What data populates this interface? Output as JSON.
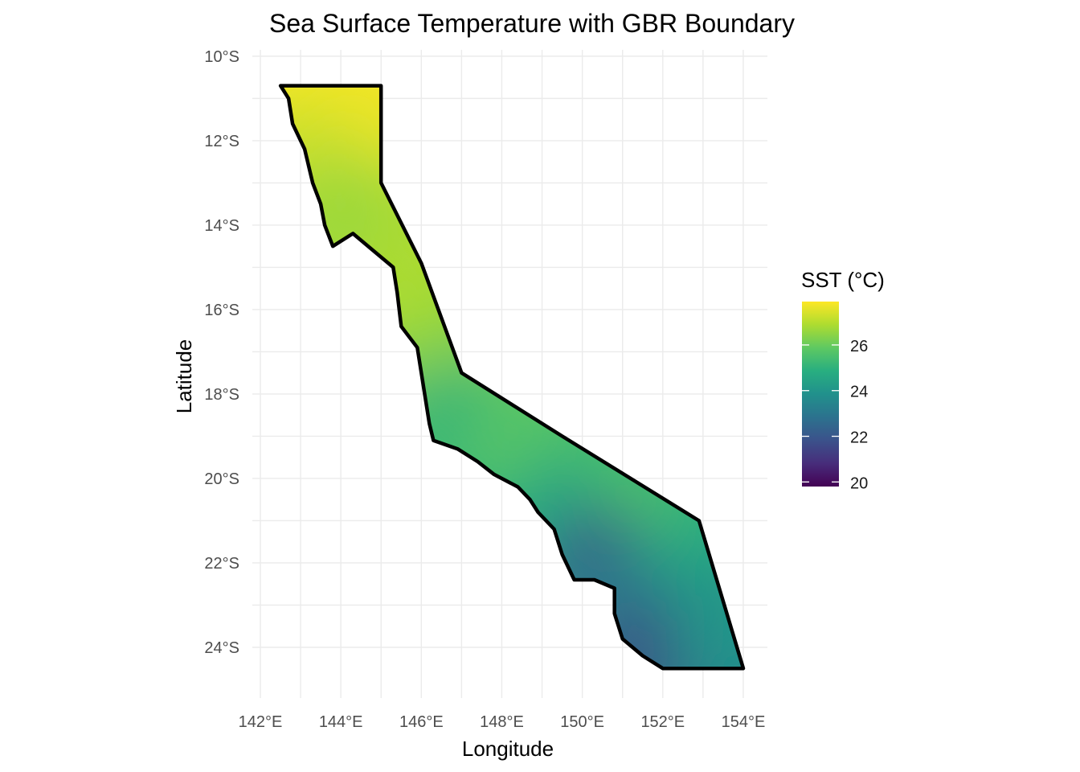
{
  "chart_data": {
    "type": "heatmap",
    "title": "Sea Surface Temperature with GBR Boundary",
    "xlabel": "Longitude",
    "ylabel": "Latitude",
    "xlim": [
      141.8,
      154.6
    ],
    "ylim": [
      -25.2,
      -9.85
    ],
    "x_ticks": [
      {
        "value": 142,
        "label": "142°E"
      },
      {
        "value": 144,
        "label": "144°E"
      },
      {
        "value": 146,
        "label": "146°E"
      },
      {
        "value": 148,
        "label": "148°E"
      },
      {
        "value": 150,
        "label": "150°E"
      },
      {
        "value": 152,
        "label": "152°E"
      },
      {
        "value": 154,
        "label": "154°E"
      }
    ],
    "y_ticks": [
      {
        "value": -10,
        "label": "10°S"
      },
      {
        "value": -12,
        "label": "12°S"
      },
      {
        "value": -14,
        "label": "14°S"
      },
      {
        "value": -16,
        "label": "16°S"
      },
      {
        "value": -18,
        "label": "18°S"
      },
      {
        "value": -20,
        "label": "20°S"
      },
      {
        "value": -22,
        "label": "22°S"
      },
      {
        "value": -24,
        "label": "24°S"
      }
    ],
    "grid": true,
    "legend": {
      "title": "SST (°C)",
      "position": "right",
      "colormap": "viridis",
      "range": [
        19.8,
        27.9
      ],
      "ticks": [
        26,
        24,
        22,
        20
      ],
      "colors": [
        "#440154",
        "#472d7b",
        "#3b528b",
        "#2c728e",
        "#21918c",
        "#28ae80",
        "#5ec962",
        "#addc30",
        "#fde725"
      ]
    },
    "boundary": {
      "name": "GBR Boundary",
      "color": "#000000",
      "outer": [
        [
          142.5,
          -10.7
        ],
        [
          145.0,
          -10.7
        ],
        [
          145.0,
          -13.0
        ],
        [
          146.0,
          -14.9
        ],
        [
          147.0,
          -17.5
        ],
        [
          149.5,
          -19.0
        ],
        [
          152.9,
          -21.0
        ],
        [
          154.0,
          -24.5
        ],
        [
          152.0,
          -24.5
        ]
      ],
      "coast": [
        [
          152.0,
          -24.5
        ],
        [
          151.5,
          -24.2
        ],
        [
          151.0,
          -23.8
        ],
        [
          150.8,
          -23.2
        ],
        [
          150.8,
          -22.6
        ],
        [
          150.3,
          -22.4
        ],
        [
          149.8,
          -22.4
        ],
        [
          149.5,
          -21.8
        ],
        [
          149.3,
          -21.2
        ],
        [
          148.9,
          -20.8
        ],
        [
          148.7,
          -20.5
        ],
        [
          148.4,
          -20.2
        ],
        [
          147.8,
          -19.9
        ],
        [
          147.4,
          -19.6
        ],
        [
          146.9,
          -19.3
        ],
        [
          146.3,
          -19.1
        ],
        [
          146.2,
          -18.7
        ],
        [
          146.1,
          -18.1
        ],
        [
          146.0,
          -17.5
        ],
        [
          145.9,
          -16.9
        ],
        [
          145.5,
          -16.4
        ],
        [
          145.4,
          -15.6
        ],
        [
          145.3,
          -15.0
        ],
        [
          144.8,
          -14.6
        ],
        [
          144.3,
          -14.2
        ],
        [
          143.8,
          -14.5
        ],
        [
          143.6,
          -14.0
        ],
        [
          143.5,
          -13.5
        ],
        [
          143.3,
          -13.0
        ],
        [
          143.1,
          -12.2
        ],
        [
          142.8,
          -11.6
        ],
        [
          142.7,
          -11.0
        ],
        [
          142.5,
          -10.7
        ]
      ]
    },
    "sst_field": {
      "units": "°C",
      "samples": [
        {
          "lon": 144.4,
          "lat": -11.5,
          "value": 27.8
        },
        {
          "lon": 143.5,
          "lat": -12.5,
          "value": 27.3
        },
        {
          "lon": 144.0,
          "lat": -13.6,
          "value": 26.6
        },
        {
          "lon": 145.5,
          "lat": -15.5,
          "value": 26.9
        },
        {
          "lon": 146.5,
          "lat": -17.2,
          "value": 26.5
        },
        {
          "lon": 146.8,
          "lat": -18.5,
          "value": 25.0
        },
        {
          "lon": 148.5,
          "lat": -19.2,
          "value": 25.8
        },
        {
          "lon": 150.0,
          "lat": -20.0,
          "value": 25.5
        },
        {
          "lon": 149.4,
          "lat": -20.8,
          "value": 24.5
        },
        {
          "lon": 151.5,
          "lat": -21.0,
          "value": 25.6
        },
        {
          "lon": 150.4,
          "lat": -22.0,
          "value": 22.0
        },
        {
          "lon": 152.5,
          "lat": -22.3,
          "value": 24.6
        },
        {
          "lon": 151.2,
          "lat": -23.2,
          "value": 23.5
        },
        {
          "lon": 151.6,
          "lat": -24.1,
          "value": 21.6
        },
        {
          "lon": 153.4,
          "lat": -23.5,
          "value": 24.0
        }
      ]
    }
  }
}
